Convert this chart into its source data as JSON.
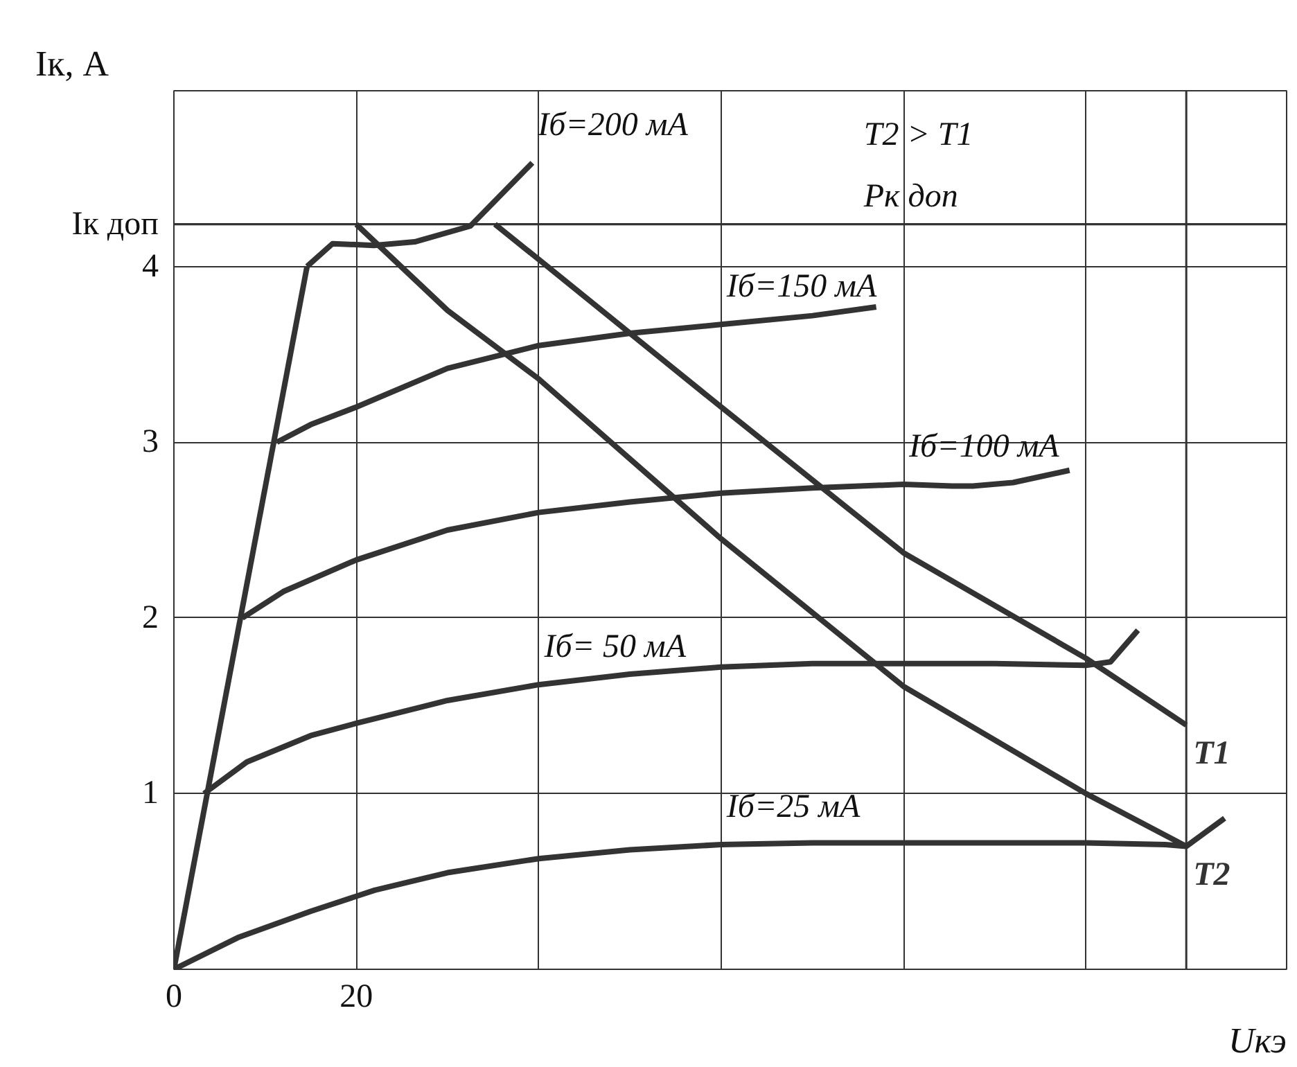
{
  "chart_data": {
    "type": "line",
    "xlabel": "Uкэ",
    "ylabel": "Iк, А",
    "xlim": [
      0,
      122
    ],
    "ylim": [
      0,
      5
    ],
    "xticks": [
      0,
      20,
      {
        "value": 40,
        "label": null
      },
      {
        "value": 60,
        "label": null
      },
      {
        "value": 80,
        "label": null
      },
      {
        "value": 100,
        "label": null
      }
    ],
    "yticks": [
      {
        "value": 0,
        "label": null
      },
      1,
      2,
      3,
      4,
      {
        "value": 4.24,
        "label": "Iк доп"
      },
      {
        "value": 5,
        "label": null
      }
    ],
    "grid": true,
    "marker": "none",
    "line_style": "solid",
    "ref_lines": [
      {
        "axis": "y",
        "value": 4.24
      },
      {
        "axis": "x",
        "value": 111,
        "label": null
      }
    ],
    "series": [
      {
        "color": "#333333",
        "x": [
          0,
          14.6
        ],
        "values": [
          0,
          4.0
        ]
      },
      {
        "color": "#333333",
        "x": [
          0,
          7,
          15,
          22,
          30,
          40,
          50,
          60,
          70,
          80,
          90,
          100,
          108.7,
          111,
          115.2
        ],
        "values": [
          0,
          0.18,
          0.33,
          0.45,
          0.55,
          0.63,
          0.68,
          0.71,
          0.72,
          0.72,
          0.72,
          0.72,
          0.71,
          0.7,
          0.86
        ]
      },
      {
        "color": "#333333",
        "x": [
          3.3,
          8,
          15,
          20,
          30,
          40,
          50,
          60,
          70,
          80,
          90,
          100,
          102.7,
          105.7
        ],
        "values": [
          1.0,
          1.18,
          1.33,
          1.4,
          1.53,
          1.62,
          1.68,
          1.72,
          1.74,
          1.74,
          1.74,
          1.73,
          1.75,
          1.93
        ]
      },
      {
        "color": "#333333",
        "x": [
          7.5,
          12,
          20,
          30,
          40,
          50,
          60,
          70,
          80,
          85.3,
          87.6,
          92,
          98.2
        ],
        "values": [
          2.0,
          2.15,
          2.33,
          2.5,
          2.6,
          2.66,
          2.71,
          2.74,
          2.76,
          2.75,
          2.75,
          2.77,
          2.84
        ]
      },
      {
        "color": "#333333",
        "x": [
          11.3,
          15,
          20,
          30,
          40,
          50,
          60,
          70,
          77
        ],
        "values": [
          3.0,
          3.1,
          3.2,
          3.42,
          3.55,
          3.62,
          3.67,
          3.72,
          3.77
        ]
      },
      {
        "color": "#333333",
        "x": [
          14.6,
          17.4,
          21.9,
          26.4,
          32.5,
          39.3
        ],
        "values": [
          4.0,
          4.13,
          4.12,
          4.14,
          4.23,
          4.59
        ]
      },
      {
        "name": "T2",
        "color": "#333333",
        "x": [
          20,
          30,
          40,
          60,
          80,
          100,
          111
        ],
        "values": [
          4.24,
          3.75,
          3.36,
          2.45,
          1.61,
          1.0,
          0.7
        ]
      },
      {
        "name": "T1",
        "color": "#333333",
        "x": [
          35.2,
          40,
          60,
          80,
          100,
          111
        ],
        "values": [
          4.24,
          4.04,
          3.2,
          2.37,
          1.77,
          1.39
        ]
      }
    ],
    "annotations": [
      "T2 > T1",
      "Pк доп",
      {
        "text": "Iб=200 мА",
        "x": 39.3,
        "y": 4.59
      },
      {
        "text": "Iб=150 мА",
        "x": 60,
        "y": 3.67
      },
      {
        "text": "Iб=100 мА",
        "x": 80,
        "y": 2.76
      },
      {
        "text": "Iб= 50 мА",
        "x": 40,
        "y": 1.62
      },
      {
        "text": "Iб=25 мА",
        "x": 60,
        "y": 0.71
      }
    ]
  }
}
